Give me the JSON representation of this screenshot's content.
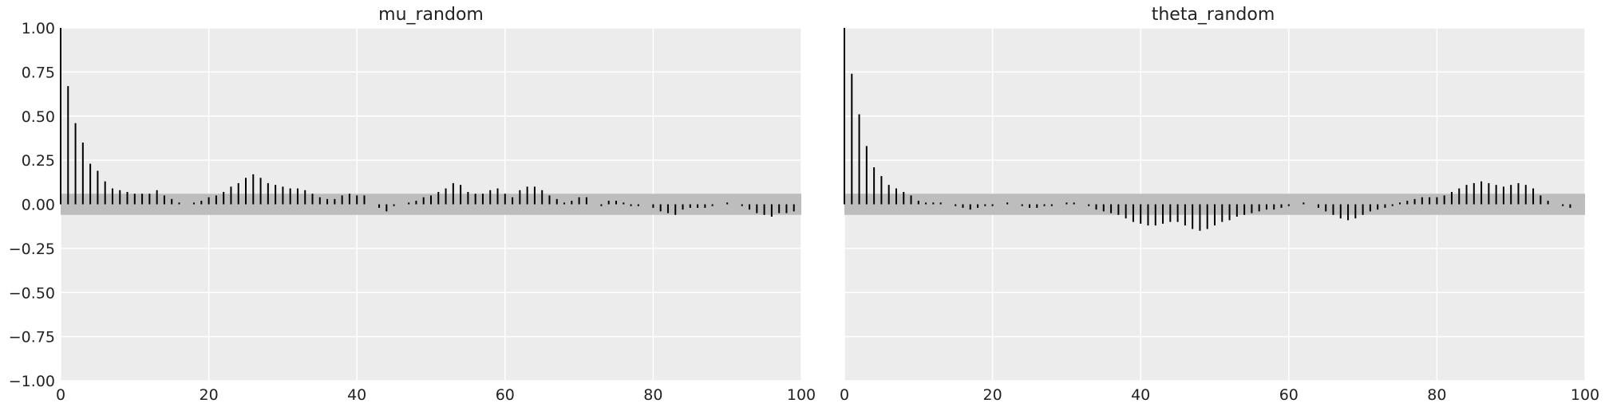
{
  "chart_data": [
    {
      "type": "bar",
      "title": "mu_random",
      "xlabel": "",
      "ylabel": "",
      "xlim": [
        0,
        100
      ],
      "ylim": [
        -1.0,
        1.0
      ],
      "x_ticks": [
        "0",
        "20",
        "40",
        "60",
        "80",
        "100"
      ],
      "y_ticks": [
        "1.00",
        "0.75",
        "0.50",
        "0.25",
        "0.00",
        "−0.25",
        "−0.50",
        "−0.75",
        "−1.00"
      ],
      "grid": true,
      "confidence_band": [
        -0.06,
        0.06
      ],
      "lags": [
        0,
        1,
        2,
        3,
        4,
        5,
        6,
        7,
        8,
        9,
        10,
        11,
        12,
        13,
        14,
        15,
        16,
        17,
        18,
        19,
        20,
        21,
        22,
        23,
        24,
        25,
        26,
        27,
        28,
        29,
        30,
        31,
        32,
        33,
        34,
        35,
        36,
        37,
        38,
        39,
        40,
        41,
        42,
        43,
        44,
        45,
        46,
        47,
        48,
        49,
        50,
        51,
        52,
        53,
        54,
        55,
        56,
        57,
        58,
        59,
        60,
        61,
        62,
        63,
        64,
        65,
        66,
        67,
        68,
        69,
        70,
        71,
        72,
        73,
        74,
        75,
        76,
        77,
        78,
        79,
        80,
        81,
        82,
        83,
        84,
        85,
        86,
        87,
        88,
        89,
        90,
        91,
        92,
        93,
        94,
        95,
        96,
        97,
        98,
        99
      ],
      "values": [
        1.0,
        0.67,
        0.46,
        0.35,
        0.23,
        0.19,
        0.13,
        0.09,
        0.08,
        0.07,
        0.06,
        0.06,
        0.06,
        0.08,
        0.05,
        0.03,
        0.01,
        0.0,
        0.01,
        0.02,
        0.04,
        0.05,
        0.07,
        0.1,
        0.12,
        0.15,
        0.17,
        0.15,
        0.12,
        0.11,
        0.1,
        0.09,
        0.09,
        0.08,
        0.06,
        0.04,
        0.03,
        0.03,
        0.05,
        0.06,
        0.05,
        0.05,
        0.0,
        -0.02,
        -0.04,
        -0.01,
        0.0,
        0.01,
        0.02,
        0.04,
        0.05,
        0.07,
        0.09,
        0.12,
        0.11,
        0.07,
        0.06,
        0.06,
        0.08,
        0.09,
        0.06,
        0.04,
        0.08,
        0.1,
        0.1,
        0.08,
        0.05,
        0.03,
        0.01,
        0.02,
        0.04,
        0.04,
        0.0,
        -0.01,
        0.02,
        0.02,
        0.01,
        -0.01,
        -0.01,
        0.0,
        -0.02,
        -0.04,
        -0.05,
        -0.06,
        -0.03,
        -0.02,
        -0.02,
        -0.02,
        -0.01,
        0.0,
        0.01,
        0.0,
        -0.01,
        -0.03,
        -0.05,
        -0.06,
        -0.07,
        -0.05,
        -0.05,
        -0.04
      ]
    },
    {
      "type": "bar",
      "title": "theta_random",
      "xlabel": "",
      "ylabel": "",
      "xlim": [
        0,
        100
      ],
      "ylim": [
        -1.0,
        1.0
      ],
      "x_ticks": [
        "0",
        "20",
        "40",
        "60",
        "80",
        "100"
      ],
      "y_ticks": [],
      "grid": true,
      "confidence_band": [
        -0.06,
        0.06
      ],
      "lags": [
        0,
        1,
        2,
        3,
        4,
        5,
        6,
        7,
        8,
        9,
        10,
        11,
        12,
        13,
        14,
        15,
        16,
        17,
        18,
        19,
        20,
        21,
        22,
        23,
        24,
        25,
        26,
        27,
        28,
        29,
        30,
        31,
        32,
        33,
        34,
        35,
        36,
        37,
        38,
        39,
        40,
        41,
        42,
        43,
        44,
        45,
        46,
        47,
        48,
        49,
        50,
        51,
        52,
        53,
        54,
        55,
        56,
        57,
        58,
        59,
        60,
        61,
        62,
        63,
        64,
        65,
        66,
        67,
        68,
        69,
        70,
        71,
        72,
        73,
        74,
        75,
        76,
        77,
        78,
        79,
        80,
        81,
        82,
        83,
        84,
        85,
        86,
        87,
        88,
        89,
        90,
        91,
        92,
        93,
        94,
        95,
        96,
        97,
        98,
        99
      ],
      "values": [
        1.0,
        0.74,
        0.51,
        0.33,
        0.21,
        0.16,
        0.11,
        0.09,
        0.07,
        0.05,
        0.02,
        0.01,
        0.01,
        0.01,
        0.0,
        -0.01,
        -0.02,
        -0.03,
        -0.02,
        -0.01,
        -0.01,
        0.0,
        0.01,
        0.0,
        -0.01,
        -0.02,
        -0.02,
        -0.01,
        -0.01,
        0.0,
        0.01,
        0.01,
        0.0,
        -0.01,
        -0.03,
        -0.04,
        -0.05,
        -0.06,
        -0.08,
        -0.1,
        -0.11,
        -0.12,
        -0.12,
        -0.11,
        -0.1,
        -0.1,
        -0.12,
        -0.14,
        -0.15,
        -0.14,
        -0.12,
        -0.1,
        -0.09,
        -0.07,
        -0.06,
        -0.05,
        -0.04,
        -0.03,
        -0.03,
        -0.02,
        -0.01,
        0.0,
        0.01,
        0.0,
        -0.02,
        -0.04,
        -0.06,
        -0.08,
        -0.09,
        -0.08,
        -0.06,
        -0.04,
        -0.03,
        -0.02,
        -0.01,
        0.01,
        0.02,
        0.03,
        0.04,
        0.04,
        0.04,
        0.05,
        0.07,
        0.09,
        0.11,
        0.12,
        0.13,
        0.12,
        0.11,
        0.1,
        0.11,
        0.12,
        0.11,
        0.09,
        0.05,
        0.02,
        0.0,
        -0.01,
        -0.02,
        0.0
      ]
    }
  ]
}
